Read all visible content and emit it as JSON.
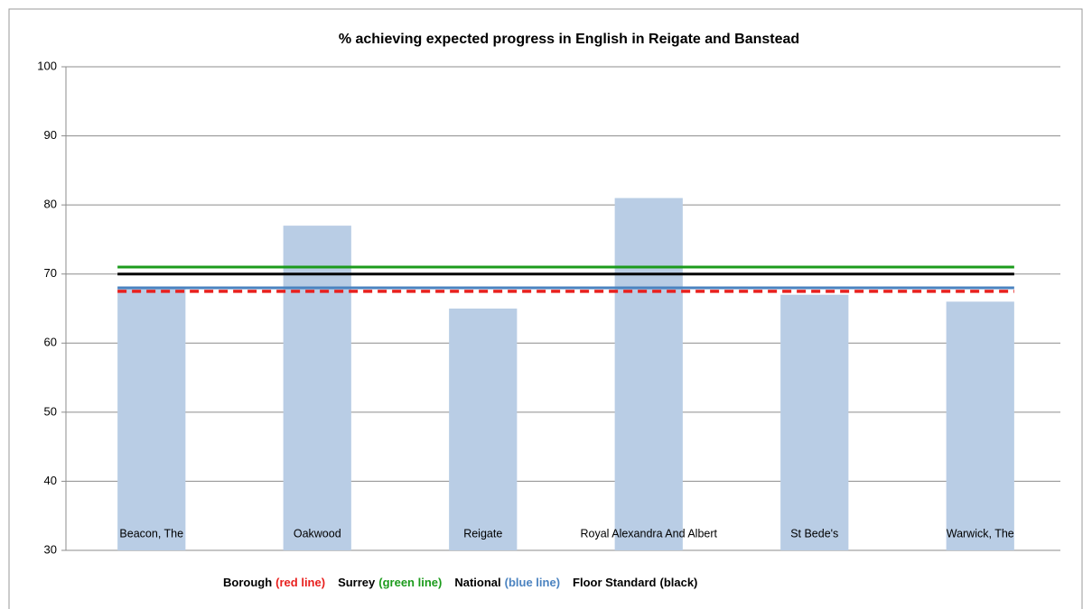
{
  "chart_data": {
    "type": "bar",
    "title": "% achieving expected progress in English in Reigate and Banstead",
    "categories": [
      "Beacon, The",
      "Oakwood",
      "Reigate",
      "Royal Alexandra And Albert",
      "St Bede's",
      "Warwick, The"
    ],
    "values": [
      68,
      77,
      65,
      81,
      67,
      66
    ],
    "color": "#b9cde5",
    "ylim": [
      30,
      100
    ],
    "yticks": [
      30,
      40,
      50,
      60,
      70,
      80,
      90,
      100
    ],
    "grid": true,
    "reference_lines": [
      {
        "name": "Borough",
        "note": "(red line)",
        "color": "#e8201e",
        "value": 67.5,
        "style": "dashed"
      },
      {
        "name": "Surrey",
        "note": "(green line)",
        "color": "#1c9b1c",
        "value": 71,
        "style": "solid"
      },
      {
        "name": "National",
        "note": "(blue line)",
        "color": "#4b83c0",
        "value": 68,
        "style": "solid"
      },
      {
        "name": "Floor Standard",
        "note": "(black)",
        "color": "#000000",
        "value": 70,
        "style": "solid"
      }
    ],
    "legend": "bottom"
  }
}
